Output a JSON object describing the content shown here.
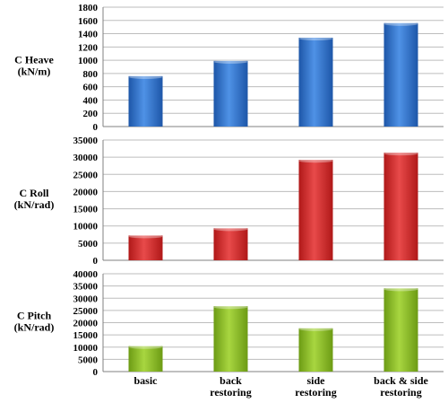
{
  "chart_data": [
    {
      "type": "bar",
      "ylabel": [
        "C Heave",
        "(kN/m)"
      ],
      "categories": [
        "basic",
        "back restoring",
        "side restoring",
        "back & side restoring"
      ],
      "values": [
        760,
        990,
        1340,
        1560
      ],
      "ylim": [
        0,
        1800
      ],
      "yticks": [
        "0",
        "200",
        "400",
        "600",
        "800",
        "1000",
        "1200",
        "1400",
        "1600",
        "1800"
      ],
      "grid": true,
      "color": "#2e6fcb"
    },
    {
      "type": "bar",
      "ylabel": [
        "C Roll",
        "(kN/rad)"
      ],
      "categories": [
        "basic",
        "back restoring",
        "side restoring",
        "back & side restoring"
      ],
      "values": [
        7200,
        9300,
        29200,
        31300
      ],
      "ylim": [
        0,
        35000
      ],
      "yticks": [
        "0",
        "5000",
        "10000",
        "15000",
        "20000",
        "25000",
        "30000",
        "35000"
      ],
      "grid": true,
      "color": "#d42a2a"
    },
    {
      "type": "bar",
      "ylabel": [
        "C Pitch",
        "(kN/rad)"
      ],
      "categories": [
        "basic",
        "back restoring",
        "side restoring",
        "back & side restoring"
      ],
      "values": [
        10400,
        26700,
        17700,
        34000
      ],
      "ylim": [
        0,
        40000
      ],
      "yticks": [
        "0",
        "5000",
        "10000",
        "15000",
        "20000",
        "25000",
        "30000",
        "35000",
        "40000"
      ],
      "grid": true,
      "color": "#8cbf2a"
    }
  ],
  "x_tick_labels": [
    [
      "basic"
    ],
    [
      "back",
      "restoring"
    ],
    [
      "side",
      "restoring"
    ],
    [
      "back & side",
      "restoring"
    ]
  ]
}
